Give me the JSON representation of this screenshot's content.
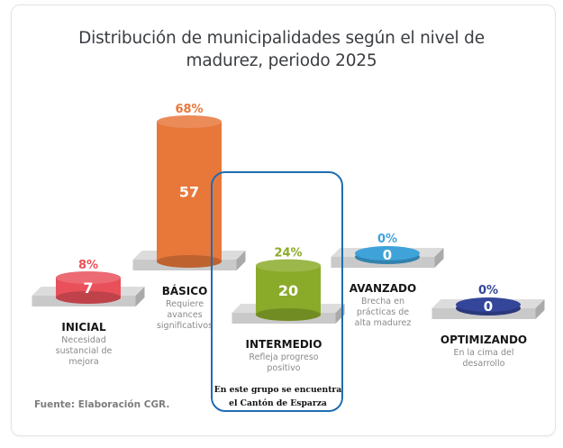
{
  "chart_data": {
    "type": "bar",
    "title": "Distribución de municipalidades según el nivel de madurez, periodo 2025",
    "title_lines": [
      "Distribución de municipalidades según el nivel de",
      "madurez, periodo 2025"
    ],
    "categories": [
      "INICIAL",
      "BÁSICO",
      "INTERMEDIO",
      "AVANZADO",
      "OPTIMIZANDO"
    ],
    "values": [
      7,
      57,
      20,
      0,
      0
    ],
    "percentages": [
      "8%",
      "68%",
      "24%",
      "0%",
      "0%"
    ],
    "descriptions": [
      [
        "Necesidad",
        "sustancial de",
        "mejora"
      ],
      [
        "Requiere",
        "avances",
        "significativos"
      ],
      [
        "Refleja progreso",
        "positivo"
      ],
      [
        "Brecha en",
        "prácticas de",
        "alta madurez"
      ],
      [
        "En la cima del",
        "desarrollo"
      ]
    ],
    "colors": [
      "#e9505a",
      "#e8773a",
      "#8aab2a",
      "#3fa3da",
      "#34469a"
    ],
    "xlabel": "",
    "ylabel": "",
    "grid": false,
    "legend": "none",
    "annotation": {
      "target": "INTERMEDIO",
      "text_lines": [
        "En este grupo se encuentra",
        "el Cantón de Esparza"
      ],
      "border_color": "#1f6db0"
    },
    "source": "Fuente: Elaboración CGR."
  }
}
